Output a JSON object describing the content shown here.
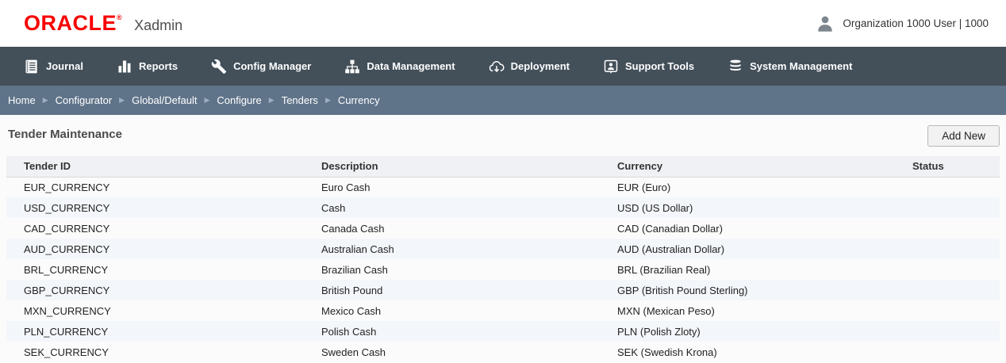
{
  "header": {
    "brand": "ORACLE",
    "brand_registered": "®",
    "app_name": "Xadmin",
    "user_info": "Organization 1000 User | 1000"
  },
  "nav": {
    "items": [
      {
        "label": "Journal",
        "icon": "journal-icon"
      },
      {
        "label": "Reports",
        "icon": "reports-icon"
      },
      {
        "label": "Config Manager",
        "icon": "wrench-icon"
      },
      {
        "label": "Data Management",
        "icon": "sitemap-icon"
      },
      {
        "label": "Deployment",
        "icon": "cloud-download-icon"
      },
      {
        "label": "Support Tools",
        "icon": "support-person-icon"
      },
      {
        "label": "System Management",
        "icon": "database-icon"
      }
    ]
  },
  "breadcrumb": {
    "separator": "▶",
    "items": [
      "Home",
      "Configurator",
      "Global/Default",
      "Configure",
      "Tenders",
      "Currency"
    ]
  },
  "page": {
    "title": "Tender Maintenance",
    "add_new_label": "Add New"
  },
  "table": {
    "columns": [
      "Tender ID",
      "Description",
      "Currency",
      "Status"
    ],
    "rows": [
      {
        "tender_id": "EUR_CURRENCY",
        "description": "Euro Cash",
        "currency": "EUR (Euro)",
        "status": ""
      },
      {
        "tender_id": "USD_CURRENCY",
        "description": "Cash",
        "currency": "USD (US Dollar)",
        "status": ""
      },
      {
        "tender_id": "CAD_CURRENCY",
        "description": "Canada Cash",
        "currency": "CAD (Canadian Dollar)",
        "status": ""
      },
      {
        "tender_id": "AUD_CURRENCY",
        "description": "Australian Cash",
        "currency": "AUD (Australian Dollar)",
        "status": ""
      },
      {
        "tender_id": "BRL_CURRENCY",
        "description": "Brazilian Cash",
        "currency": "BRL (Brazilian Real)",
        "status": ""
      },
      {
        "tender_id": "GBP_CURRENCY",
        "description": "British Pound",
        "currency": "GBP (British Pound Sterling)",
        "status": ""
      },
      {
        "tender_id": "MXN_CURRENCY",
        "description": "Mexico Cash",
        "currency": "MXN (Mexican Peso)",
        "status": ""
      },
      {
        "tender_id": "PLN_CURRENCY",
        "description": "Polish Cash",
        "currency": "PLN (Polish Zloty)",
        "status": ""
      },
      {
        "tender_id": "SEK_CURRENCY",
        "description": "Sweden Cash",
        "currency": "SEK (Swedish Krona)",
        "status": ""
      }
    ]
  },
  "colors": {
    "brand_red": "#f80000",
    "nav_bg": "#434f59",
    "breadcrumb_bg": "#5f7389",
    "table_header_bg": "#eff1f4",
    "row_stripe": "#f3f6fa"
  }
}
